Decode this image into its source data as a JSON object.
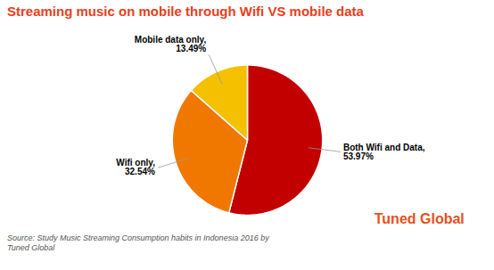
{
  "chart_data": {
    "type": "pie",
    "title": "Streaming music on mobile through Wifi VS mobile data",
    "categories": [
      "Both Wifi and Data",
      "Wifi only",
      "Mobile data only"
    ],
    "values": [
      53.97,
      32.54,
      13.49
    ],
    "value_labels": [
      "Both Wifi and Data,\n53.97%",
      "Wifi only,\n32.54%",
      "Mobile data only,\n13.49%"
    ],
    "colors": [
      "#C20000",
      "#F07800",
      "#F5C000"
    ],
    "data_labels": true,
    "annotations": [
      "Source: Study Music Streaming Consumption habits in Indonesia 2016 by\nTuned Global",
      "Tuned Global"
    ]
  }
}
